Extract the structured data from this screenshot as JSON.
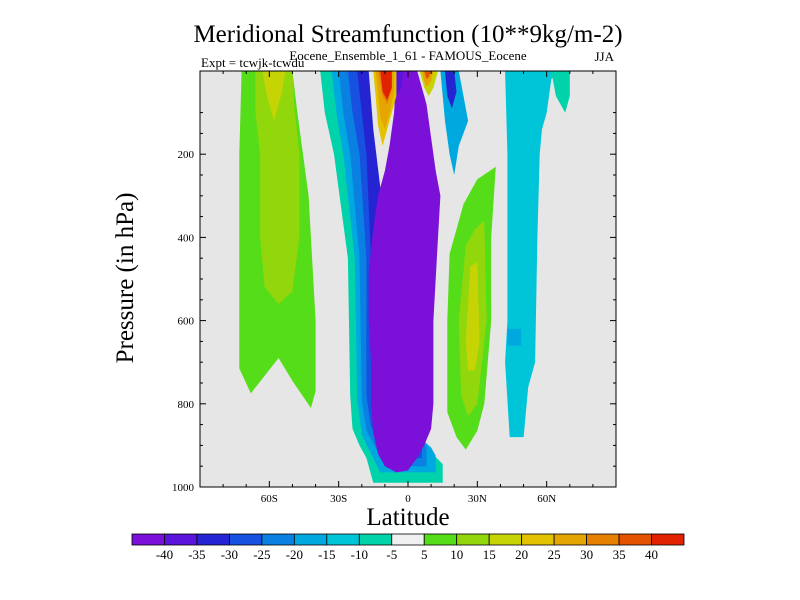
{
  "chart_data": {
    "type": "heatmap",
    "title": "Meridional Streamfunction (10**9kg/m-2)",
    "subtitle_center": "Eocene_Ensemble_1_61 - FAMOUS_Eocene",
    "subtitle_left": "Expt = tcwjk-tcwdu",
    "subtitle_right": "JJA",
    "xlabel": "Latitude",
    "ylabel": "Pressure (in hPa)",
    "xlim": [
      -90,
      90
    ],
    "ylim": [
      1000,
      0
    ],
    "x_ticks": [
      {
        "value": -60,
        "label": "60S"
      },
      {
        "value": -30,
        "label": "30S"
      },
      {
        "value": 0,
        "label": "0"
      },
      {
        "value": 30,
        "label": "30N"
      },
      {
        "value": 60,
        "label": "60N"
      }
    ],
    "y_ticks": [
      {
        "value": 200,
        "label": "200"
      },
      {
        "value": 400,
        "label": "400"
      },
      {
        "value": 600,
        "label": "600"
      },
      {
        "value": 800,
        "label": "800"
      },
      {
        "value": 1000,
        "label": "1000"
      }
    ],
    "missing_color": "#e6e6e6",
    "colorbar": {
      "labels": [
        "-40",
        "-35",
        "-30",
        "-25",
        "-20",
        "-15",
        "-10",
        "-5",
        "5",
        "10",
        "15",
        "20",
        "25",
        "30",
        "35",
        "40"
      ],
      "colors": [
        "#7b10d8",
        "#5a14dc",
        "#2424d2",
        "#1651e0",
        "#0b80e3",
        "#00a8e0",
        "#00c5d8",
        "#00d2aa",
        "#f0f0f0",
        "#56dd1a",
        "#92d60c",
        "#c6d406",
        "#e3c300",
        "#e5a500",
        "#e68000",
        "#e45400",
        "#e02200"
      ]
    },
    "contour_regions": [
      {
        "name": "nh-broad-positive",
        "color": "#56dd1a",
        "lat_p": [
          [
            -72,
            0
          ],
          [
            -50,
            0
          ],
          [
            -48,
            95
          ],
          [
            -43,
            300
          ],
          [
            -40,
            600
          ],
          [
            -40,
            770
          ],
          [
            -42,
            810
          ],
          [
            -50,
            745
          ],
          [
            -56,
            690
          ],
          [
            -68,
            775
          ],
          [
            -73,
            715
          ],
          [
            -73,
            500
          ],
          [
            -73,
            200
          ]
        ]
      },
      {
        "name": "nh-inner-positive",
        "color": "#92d60c",
        "lat_p": [
          [
            -66,
            0
          ],
          [
            -50,
            0
          ],
          [
            -49,
            100
          ],
          [
            -47,
            200
          ],
          [
            -47,
            400
          ],
          [
            -50,
            530
          ],
          [
            -56,
            560
          ],
          [
            -62,
            520
          ],
          [
            -64,
            400
          ],
          [
            -64,
            200
          ],
          [
            -66,
            100
          ]
        ]
      },
      {
        "name": "nh-core-positive",
        "color": "#c6d406",
        "lat_p": [
          [
            -63,
            0
          ],
          [
            -53,
            0
          ],
          [
            -55,
            60
          ],
          [
            -58,
            120
          ],
          [
            -61,
            60
          ]
        ]
      },
      {
        "name": "sh-outer-negative",
        "color": "#00d2aa",
        "lat_p": [
          [
            -38,
            0
          ],
          [
            -29,
            0
          ],
          [
            -27,
            160
          ],
          [
            -22,
            280
          ],
          [
            -20,
            400
          ],
          [
            -18,
            560
          ],
          [
            -10,
            700
          ],
          [
            -6,
            825
          ],
          [
            3,
            880
          ],
          [
            8,
            905
          ],
          [
            15,
            945
          ],
          [
            15,
            990
          ],
          [
            -15,
            990
          ],
          [
            -18,
            930
          ],
          [
            -21,
            900
          ],
          [
            -24,
            860
          ],
          [
            -25,
            780
          ],
          [
            -26,
            450
          ],
          [
            -32,
            200
          ],
          [
            -36,
            100
          ]
        ]
      },
      {
        "name": "ne-positive-column",
        "color": "#56dd1a",
        "lat_p": [
          [
            18,
            440
          ],
          [
            24,
            320
          ],
          [
            30,
            260
          ],
          [
            38,
            230
          ],
          [
            36,
            400
          ],
          [
            36,
            600
          ],
          [
            33,
            800
          ],
          [
            30,
            865
          ],
          [
            25,
            910
          ],
          [
            21,
            880
          ],
          [
            17,
            820
          ],
          [
            17,
            600
          ]
        ]
      },
      {
        "name": "ne-positive-core",
        "color": "#92d60c",
        "lat_p": [
          [
            22,
            600
          ],
          [
            25,
            420
          ],
          [
            29,
            380
          ],
          [
            33,
            360
          ],
          [
            34,
            600
          ],
          [
            30,
            800
          ],
          [
            26,
            830
          ],
          [
            23,
            780
          ]
        ]
      },
      {
        "name": "ne-positive-center",
        "color": "#c6d406",
        "lat_p": [
          [
            25,
            650
          ],
          [
            27,
            470
          ],
          [
            30,
            460
          ],
          [
            31,
            650
          ],
          [
            29,
            720
          ],
          [
            26,
            720
          ]
        ]
      },
      {
        "name": "nh-negative-column",
        "color": "#00c5d8",
        "lat_p": [
          [
            42,
            0
          ],
          [
            65,
            0
          ],
          [
            62,
            20
          ],
          [
            60,
            100
          ],
          [
            58,
            140
          ],
          [
            57,
            200
          ],
          [
            56,
            400
          ],
          [
            55,
            700
          ],
          [
            52,
            760
          ],
          [
            50,
            880
          ],
          [
            44,
            880
          ],
          [
            42,
            700
          ],
          [
            43,
            600
          ],
          [
            43,
            400
          ],
          [
            43,
            200
          ]
        ]
      },
      {
        "name": "nh-negative-patch",
        "color": "#00a8e0",
        "lat_p": [
          [
            43,
            620
          ],
          [
            49,
            620
          ],
          [
            49,
            660
          ],
          [
            43,
            660
          ]
        ]
      },
      {
        "name": "polar-positive-strip",
        "color": "#00d2aa",
        "lat_p": [
          [
            62,
            0
          ],
          [
            70,
            0
          ],
          [
            70,
            60
          ],
          [
            68,
            100
          ],
          [
            64,
            60
          ]
        ]
      },
      {
        "name": "sh-ring-negative-1",
        "color": "#00a8e0",
        "lat_p": [
          [
            -33,
            0
          ],
          [
            -27,
            0
          ],
          [
            -24,
            160
          ],
          [
            -20,
            280
          ],
          [
            -18,
            400
          ],
          [
            -15,
            560
          ],
          [
            -8,
            720
          ],
          [
            -3,
            825
          ],
          [
            5,
            880
          ],
          [
            10,
            905
          ],
          [
            12,
            925
          ],
          [
            12,
            965
          ],
          [
            -12,
            965
          ],
          [
            -16,
            920
          ],
          [
            -20,
            875
          ],
          [
            -22,
            790
          ],
          [
            -23,
            450
          ],
          [
            -28,
            200
          ],
          [
            -31,
            100
          ]
        ]
      },
      {
        "name": "sh-ring-negative-2",
        "color": "#0b80e3",
        "lat_p": [
          [
            -30,
            0
          ],
          [
            -24,
            0
          ],
          [
            -22,
            160
          ],
          [
            -18,
            280
          ],
          [
            -16,
            400
          ],
          [
            -13,
            560
          ],
          [
            -5,
            720
          ],
          [
            0,
            825
          ],
          [
            5,
            870
          ],
          [
            8,
            905
          ],
          [
            8,
            950
          ],
          [
            -10,
            950
          ],
          [
            -14,
            905
          ],
          [
            -18,
            865
          ],
          [
            -20,
            790
          ],
          [
            -21,
            450
          ],
          [
            -25,
            200
          ],
          [
            -28,
            100
          ]
        ]
      },
      {
        "name": "sh-ring-negative-3",
        "color": "#1651e0",
        "lat_p": [
          [
            -26,
            0
          ],
          [
            -20,
            0
          ],
          [
            -18,
            150
          ],
          [
            -14,
            280
          ],
          [
            -12,
            400
          ],
          [
            -10,
            560
          ],
          [
            -3,
            720
          ],
          [
            2,
            825
          ],
          [
            6,
            880
          ],
          [
            6,
            930
          ],
          [
            -8,
            940
          ],
          [
            -12,
            895
          ],
          [
            -16,
            855
          ],
          [
            -18,
            780
          ],
          [
            -18,
            450
          ],
          [
            -21,
            200
          ],
          [
            -24,
            100
          ]
        ]
      },
      {
        "name": "sh-ring-negative-4",
        "color": "#2424d2",
        "lat_p": [
          [
            -22,
            0
          ],
          [
            -17,
            0
          ],
          [
            -15,
            140
          ],
          [
            -12,
            280
          ],
          [
            -10,
            400
          ],
          [
            -8,
            560
          ],
          [
            -2,
            720
          ],
          [
            3,
            825
          ],
          [
            5,
            880
          ],
          [
            5,
            920
          ],
          [
            -6,
            930
          ],
          [
            -11,
            885
          ],
          [
            -14,
            845
          ],
          [
            -16,
            770
          ],
          [
            -16,
            450
          ],
          [
            -18,
            200
          ],
          [
            -20,
            100
          ]
        ]
      },
      {
        "name": "main-cell-negative",
        "color": "#7b10d8",
        "lat_p": [
          [
            -5,
            0
          ],
          [
            4,
            0
          ],
          [
            8,
            80
          ],
          [
            10,
            160
          ],
          [
            12,
            240
          ],
          [
            14,
            300
          ],
          [
            13,
            400
          ],
          [
            12,
            500
          ],
          [
            11,
            600
          ],
          [
            11,
            800
          ],
          [
            10,
            860
          ],
          [
            7,
            900
          ],
          [
            4,
            930
          ],
          [
            0,
            960
          ],
          [
            -5,
            965
          ],
          [
            -10,
            950
          ],
          [
            -13,
            920
          ],
          [
            -15,
            870
          ],
          [
            -16,
            800
          ],
          [
            -16,
            700
          ],
          [
            -17,
            600
          ],
          [
            -17,
            480
          ],
          [
            -15,
            380
          ],
          [
            -13,
            300
          ],
          [
            -10,
            240
          ],
          [
            -8,
            180
          ],
          [
            -6,
            100
          ]
        ]
      },
      {
        "name": "tropical-neg-tongue",
        "color": "#5a14dc",
        "lat_p": [
          [
            -5,
            0
          ],
          [
            -2,
            0
          ],
          [
            -3,
            40
          ],
          [
            -5,
            60
          ]
        ]
      },
      {
        "name": "sh-upper-positive-1",
        "color": "#e3c300",
        "lat_p": [
          [
            -15,
            0
          ],
          [
            -5,
            0
          ],
          [
            -5,
            60
          ],
          [
            -8,
            120
          ],
          [
            -11,
            180
          ],
          [
            -13,
            130
          ],
          [
            -14,
            60
          ]
        ]
      },
      {
        "name": "sh-upper-positive-2",
        "color": "#e5a500",
        "lat_p": [
          [
            -14,
            0
          ],
          [
            -6,
            0
          ],
          [
            -6,
            50
          ],
          [
            -8,
            100
          ],
          [
            -10,
            140
          ],
          [
            -12,
            110
          ],
          [
            -13,
            50
          ]
        ]
      },
      {
        "name": "sh-upper-positive-3",
        "color": "#e68000",
        "lat_p": [
          [
            -13,
            0
          ],
          [
            -7,
            0
          ],
          [
            -7,
            45
          ],
          [
            -9,
            80
          ],
          [
            -11,
            60
          ],
          [
            -12,
            30
          ]
        ]
      },
      {
        "name": "sh-upper-positive-core",
        "color": "#e02200",
        "lat_p": [
          [
            -12,
            0
          ],
          [
            -7,
            0
          ],
          [
            -7,
            40
          ],
          [
            -9,
            70
          ],
          [
            -11,
            50
          ]
        ]
      },
      {
        "name": "eq-upper-positive",
        "color": "#c6d406",
        "lat_p": [
          [
            5,
            0
          ],
          [
            13,
            0
          ],
          [
            11,
            40
          ],
          [
            9,
            60
          ],
          [
            7,
            40
          ]
        ]
      },
      {
        "name": "eq-upper-positive-core",
        "color": "#e5a500",
        "lat_p": [
          [
            6,
            0
          ],
          [
            11,
            0
          ],
          [
            10,
            25
          ],
          [
            8,
            40
          ],
          [
            7,
            25
          ]
        ]
      },
      {
        "name": "eq-upper-positive-red",
        "color": "#e45400",
        "lat_p": [
          [
            7,
            0
          ],
          [
            10,
            0
          ],
          [
            9,
            15
          ],
          [
            8,
            20
          ]
        ]
      },
      {
        "name": "nh-upper-negative",
        "color": "#00a8e0",
        "lat_p": [
          [
            14,
            0
          ],
          [
            22,
            0
          ],
          [
            24,
            60
          ],
          [
            26,
            120
          ],
          [
            22,
            180
          ],
          [
            20,
            250
          ],
          [
            18,
            200
          ],
          [
            16,
            120
          ],
          [
            15,
            60
          ]
        ]
      },
      {
        "name": "nh-upper-negative-core",
        "color": "#2424d2",
        "lat_p": [
          [
            16,
            0
          ],
          [
            20,
            0
          ],
          [
            21,
            50
          ],
          [
            19,
            90
          ],
          [
            17,
            60
          ]
        ]
      }
    ]
  }
}
